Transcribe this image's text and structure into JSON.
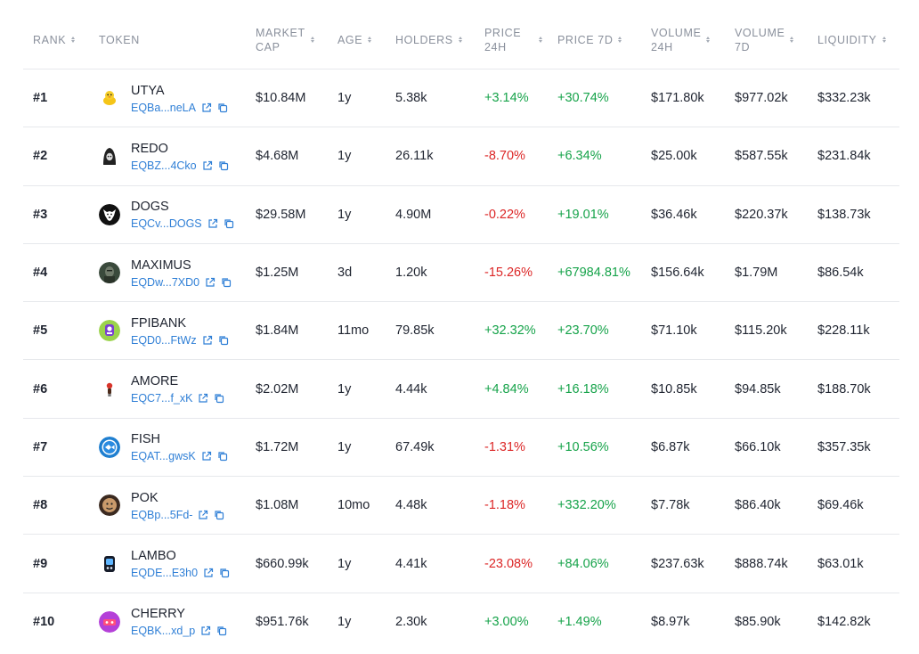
{
  "headers": {
    "rank": "RANK",
    "token": "TOKEN",
    "market_cap_1": "MARKET",
    "market_cap_2": "CAP",
    "age": "AGE",
    "holders": "HOLDERS",
    "price24_1": "PRICE",
    "price24_2": "24H",
    "price7d": "PRICE 7D",
    "vol24_1": "VOLUME",
    "vol24_2": "24H",
    "vol7_1": "VOLUME",
    "vol7_2": "7D",
    "liquidity": "LIQUIDITY"
  },
  "colors": {
    "positive": "#16a34a",
    "negative": "#dc2626",
    "link": "#2f7fd6"
  },
  "rows": [
    {
      "rank": "#1",
      "name": "UTYA",
      "address": "EQBa...neLA",
      "market_cap": "$10.84M",
      "age": "1y",
      "holders": "5.38k",
      "price_24h": "+3.14%",
      "price_7d": "+30.74%",
      "volume_24h": "$171.80k",
      "volume_7d": "$977.02k",
      "liquidity": "$332.23k",
      "icon": "duck-icon"
    },
    {
      "rank": "#2",
      "name": "REDO",
      "address": "EQBZ...4Cko",
      "market_cap": "$4.68M",
      "age": "1y",
      "holders": "26.11k",
      "price_24h": "-8.70%",
      "price_7d": "+6.34%",
      "volume_24h": "$25.00k",
      "volume_7d": "$587.55k",
      "liquidity": "$231.84k",
      "icon": "hood-icon"
    },
    {
      "rank": "#3",
      "name": "DOGS",
      "address": "EQCv...DOGS",
      "market_cap": "$29.58M",
      "age": "1y",
      "holders": "4.90M",
      "price_24h": "-0.22%",
      "price_7d": "+19.01%",
      "volume_24h": "$36.46k",
      "volume_7d": "$220.37k",
      "liquidity": "$138.73k",
      "icon": "dog-icon"
    },
    {
      "rank": "#4",
      "name": "MAXIMUS",
      "address": "EQDw...7XD0",
      "market_cap": "$1.25M",
      "age": "3d",
      "holders": "1.20k",
      "price_24h": "-15.26%",
      "price_7d": "+67984.81%",
      "volume_24h": "$156.64k",
      "volume_7d": "$1.79M",
      "liquidity": "$86.54k",
      "icon": "warrior-icon"
    },
    {
      "rank": "#5",
      "name": "FPIBANK",
      "address": "EQD0...FtWz",
      "market_cap": "$1.84M",
      "age": "11mo",
      "holders": "79.85k",
      "price_24h": "+32.32%",
      "price_7d": "+23.70%",
      "volume_24h": "$71.10k",
      "volume_7d": "$115.20k",
      "liquidity": "$228.11k",
      "icon": "bank-icon"
    },
    {
      "rank": "#6",
      "name": "AMORE",
      "address": "EQC7...f_xK",
      "market_cap": "$2.02M",
      "age": "1y",
      "holders": "4.44k",
      "price_24h": "+4.84%",
      "price_7d": "+16.18%",
      "volume_24h": "$10.85k",
      "volume_7d": "$94.85k",
      "liquidity": "$188.70k",
      "icon": "figure-icon"
    },
    {
      "rank": "#7",
      "name": "FISH",
      "address": "EQAT...gwsK",
      "market_cap": "$1.72M",
      "age": "1y",
      "holders": "67.49k",
      "price_24h": "-1.31%",
      "price_7d": "+10.56%",
      "volume_24h": "$6.87k",
      "volume_7d": "$66.10k",
      "liquidity": "$357.35k",
      "icon": "fish-icon"
    },
    {
      "rank": "#8",
      "name": "POK",
      "address": "EQBp...5Fd-",
      "market_cap": "$1.08M",
      "age": "10mo",
      "holders": "4.48k",
      "price_24h": "-1.18%",
      "price_7d": "+332.20%",
      "volume_24h": "$7.78k",
      "volume_7d": "$86.40k",
      "liquidity": "$69.46k",
      "icon": "face-icon"
    },
    {
      "rank": "#9",
      "name": "LAMBO",
      "address": "EQDE...E3h0",
      "market_cap": "$660.99k",
      "age": "1y",
      "holders": "4.41k",
      "price_24h": "-23.08%",
      "price_7d": "+84.06%",
      "volume_24h": "$237.63k",
      "volume_7d": "$888.74k",
      "liquidity": "$63.01k",
      "icon": "car-icon"
    },
    {
      "rank": "#10",
      "name": "CHERRY",
      "address": "EQBK...xd_p",
      "market_cap": "$951.76k",
      "age": "1y",
      "holders": "2.30k",
      "price_24h": "+3.00%",
      "price_7d": "+1.49%",
      "volume_24h": "$8.97k",
      "volume_7d": "$85.90k",
      "liquidity": "$142.82k",
      "icon": "cherry-icon"
    }
  ]
}
